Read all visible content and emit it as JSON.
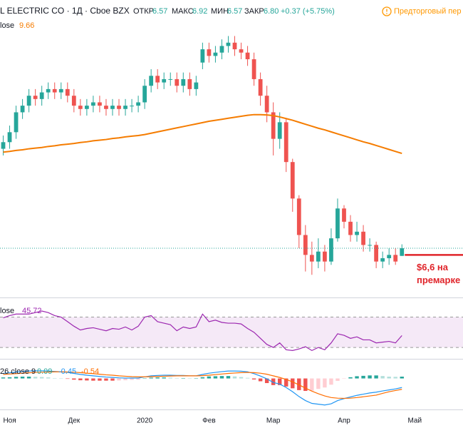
{
  "chart_data": [
    {
      "type": "candlestick",
      "title": "L ELECTRIC CO · 1Д · Cboe BZX",
      "status": "Предторговый пер",
      "ohlc_labels": [
        {
          "name": "ОТКР",
          "value": 6.57
        },
        {
          "name": "МАКС",
          "value": 6.92
        },
        {
          "name": "МИН",
          "value": 6.57
        },
        {
          "name": "ЗАКР",
          "value": 6.8,
          "label": "6.80"
        }
      ],
      "change": "+0.37 (+5.75%)",
      "categories": [
        null,
        "Ноя",
        null,
        null,
        null,
        null,
        null,
        null,
        null,
        null,
        null,
        "Дек",
        null,
        null,
        null,
        null,
        null,
        null,
        null,
        null,
        null,
        null,
        "2020",
        null,
        null,
        null,
        null,
        null,
        null,
        null,
        null,
        null,
        "Фев",
        null,
        null,
        null,
        null,
        null,
        null,
        null,
        null,
        null,
        "Мар",
        null,
        null,
        null,
        null,
        null,
        null,
        null,
        null,
        null,
        null,
        "Апр",
        null,
        null,
        null,
        null,
        null,
        null,
        null,
        null,
        null,
        null,
        "Май",
        null,
        null,
        null,
        null,
        null,
        null,
        null
      ],
      "open": [
        9.8,
        10.0,
        10.3,
        10.9,
        11.1,
        11.4,
        11.3,
        11.5,
        11.6,
        11.5,
        11.6,
        11.4,
        11.1,
        11.0,
        11.1,
        11.2,
        11.1,
        11.0,
        11.1,
        11.0,
        11.1,
        11.1,
        11.2,
        11.7,
        12.0,
        11.8,
        11.9,
        11.9,
        11.7,
        11.9,
        11.6,
        12.4,
        12.8,
        12.6,
        12.7,
        12.9,
        13.0,
        12.8,
        12.7,
        12.5,
        11.9,
        11.4,
        10.9,
        10.1,
        10.6,
        9.4,
        8.3,
        7.2,
        6.6,
        6.4,
        6.7,
        6.4,
        7.1,
        8.0,
        7.6,
        7.2,
        7.3,
        6.9,
        6.9,
        6.4,
        6.5,
        6.6,
        6.57,
        null,
        null,
        null,
        null,
        null,
        null,
        null,
        null,
        null
      ],
      "high": [
        10.2,
        10.5,
        11.1,
        11.3,
        11.6,
        11.6,
        11.7,
        11.8,
        11.8,
        11.8,
        11.8,
        11.6,
        11.3,
        11.3,
        11.4,
        11.4,
        11.3,
        11.3,
        11.3,
        11.3,
        11.3,
        11.4,
        11.9,
        12.2,
        12.2,
        12.1,
        12.1,
        12.1,
        12.1,
        12.1,
        12.0,
        13.0,
        13.0,
        12.9,
        13.1,
        13.2,
        13.2,
        13.0,
        12.9,
        12.7,
        12.1,
        11.7,
        11.2,
        10.9,
        10.7,
        9.5,
        8.4,
        7.5,
        7.0,
        7.1,
        6.9,
        7.4,
        8.3,
        8.1,
        7.8,
        7.6,
        7.5,
        7.1,
        7.0,
        6.7,
        6.8,
        6.8,
        6.92,
        null,
        null,
        null,
        null,
        null,
        null,
        null,
        null,
        null
      ],
      "low": [
        9.6,
        9.8,
        10.1,
        10.7,
        10.9,
        11.1,
        11.1,
        11.3,
        11.3,
        11.3,
        11.2,
        10.9,
        10.8,
        10.8,
        10.9,
        10.9,
        10.8,
        10.8,
        10.8,
        10.8,
        10.9,
        10.9,
        11.0,
        11.5,
        11.6,
        11.6,
        11.7,
        11.5,
        11.5,
        11.4,
        11.4,
        12.2,
        12.4,
        12.4,
        12.5,
        12.7,
        12.6,
        12.5,
        12.3,
        11.7,
        11.1,
        10.6,
        9.6,
        9.8,
        9.1,
        7.9,
        6.8,
        6.1,
        6.0,
        6.2,
        6.1,
        6.3,
        7.0,
        7.4,
        7.0,
        7.0,
        6.7,
        6.7,
        6.2,
        6.2,
        6.3,
        6.3,
        6.57,
        null,
        null,
        null,
        null,
        null,
        null,
        null,
        null,
        null
      ],
      "close": [
        10.0,
        10.3,
        10.9,
        11.1,
        11.4,
        11.3,
        11.5,
        11.6,
        11.5,
        11.6,
        11.4,
        11.1,
        11.0,
        11.1,
        11.2,
        11.1,
        11.0,
        11.1,
        11.0,
        11.1,
        11.1,
        11.2,
        11.7,
        12.0,
        11.8,
        11.9,
        11.9,
        11.7,
        11.9,
        11.6,
        11.8,
        12.8,
        12.6,
        12.7,
        12.9,
        13.0,
        12.8,
        12.7,
        12.5,
        11.9,
        11.4,
        10.9,
        10.1,
        10.6,
        9.4,
        8.3,
        7.2,
        6.6,
        6.4,
        6.7,
        6.4,
        7.1,
        8.0,
        7.6,
        7.2,
        7.3,
        6.9,
        6.9,
        6.4,
        6.5,
        6.6,
        6.4,
        6.8,
        null,
        null,
        null,
        null,
        null,
        null,
        null,
        null,
        null
      ],
      "up_color": "#26a69a",
      "down_color": "#ef5350",
      "ylim": [
        5.36,
        13.77
      ],
      "series": [
        {
          "name": "lose",
          "color": "#f57c00",
          "values": [
            9.7,
            9.72,
            9.75,
            9.77,
            9.8,
            9.82,
            9.84,
            9.87,
            9.89,
            9.92,
            9.94,
            9.96,
            9.99,
            10.01,
            10.04,
            10.06,
            10.08,
            10.11,
            10.13,
            10.16,
            10.18,
            10.2,
            10.23,
            10.27,
            10.31,
            10.35,
            10.39,
            10.43,
            10.47,
            10.51,
            10.55,
            10.59,
            10.63,
            10.66,
            10.69,
            10.72,
            10.75,
            10.78,
            10.81,
            10.83,
            10.83,
            10.82,
            10.8,
            10.76,
            10.71,
            10.66,
            10.6,
            10.54,
            10.48,
            10.42,
            10.37,
            10.31,
            10.25,
            10.19,
            10.13,
            10.07,
            10.01,
            9.96,
            9.9,
            9.84,
            9.78,
            9.72,
            9.66,
            null,
            null,
            null,
            null,
            null,
            null,
            null,
            null,
            null
          ]
        }
      ],
      "annotation": {
        "value": 6.6,
        "lines": [
          "$6,6 на",
          "премарке"
        ],
        "color": "#e0242a"
      }
    },
    {
      "type": "line",
      "ylim": [
        16,
        94
      ],
      "band": [
        30,
        70
      ],
      "band_color": "#9c27b0",
      "series": [
        {
          "name": "lose",
          "color": "#9c27b0",
          "values": [
            69,
            72,
            74,
            74,
            74,
            76,
            78,
            76,
            72,
            70,
            64,
            58,
            53,
            55,
            56,
            54,
            52,
            55,
            54,
            57,
            53,
            58,
            70,
            72,
            64,
            62,
            60,
            52,
            57,
            55,
            57,
            74,
            64,
            66,
            63,
            62,
            62,
            61,
            55,
            50,
            42,
            34,
            30,
            36,
            27,
            26,
            28,
            31,
            26,
            30,
            27,
            36,
            48,
            46,
            42,
            44,
            40,
            40,
            36,
            37,
            38,
            36,
            45.72,
            null,
            null,
            null,
            null,
            null,
            null,
            null,
            null,
            null
          ]
        }
      ]
    },
    {
      "type": "macd",
      "label": "26 close 9",
      "ylim": [
        -1.47,
        0.87
      ],
      "hist_colors": [
        "#26a69a",
        "#b2dfdb",
        "#ffcdd2",
        "#ef5350"
      ],
      "series": [
        {
          "color": "#26a69a",
          "values": [
            0.05,
            0.06,
            0.08,
            0.09,
            0.09,
            0.08,
            0.07,
            0.05,
            0.02,
            0,
            -0.02,
            -0.06,
            -0.09,
            -0.1,
            -0.11,
            -0.11,
            -0.11,
            -0.11,
            -0.1,
            -0.09,
            -0.07,
            -0.06,
            0,
            0.04,
            0.05,
            0.05,
            0.04,
            0.02,
            0.02,
            0,
            0,
            0.06,
            0.1,
            0.11,
            0.12,
            0.12,
            0.1,
            0.07,
            0.03,
            -0.05,
            -0.14,
            -0.23,
            -0.33,
            -0.33,
            -0.4,
            -0.49,
            -0.58,
            -0.62,
            -0.61,
            -0.52,
            -0.45,
            -0.31,
            -0.12,
            -0.01,
            0.06,
            0.11,
            0.13,
            0.15,
            0.15,
            0.12,
            0.09,
            0.08,
            0.09,
            null,
            null,
            null,
            null,
            null,
            null,
            null,
            null,
            null
          ]
        },
        {
          "color": "#2196f3",
          "values": [
            0.25,
            0.28,
            0.32,
            0.35,
            0.37,
            0.38,
            0.38,
            0.37,
            0.35,
            0.33,
            0.3,
            0.25,
            0.2,
            0.16,
            0.13,
            0.1,
            0.07,
            0.05,
            0.03,
            0.02,
            0.02,
            0.02,
            0.08,
            0.13,
            0.15,
            0.16,
            0.16,
            0.15,
            0.15,
            0.13,
            0.13,
            0.2,
            0.26,
            0.3,
            0.34,
            0.37,
            0.37,
            0.36,
            0.33,
            0.24,
            0.12,
            -0.02,
            -0.2,
            -0.28,
            -0.45,
            -0.66,
            -0.9,
            -1.1,
            -1.24,
            -1.28,
            -1.32,
            -1.26,
            -1.1,
            -1.0,
            -0.92,
            -0.84,
            -0.78,
            -0.72,
            -0.68,
            -0.62,
            -0.57,
            -0.52,
            -0.45,
            null,
            null,
            null,
            null,
            null,
            null,
            null,
            null,
            null
          ]
        },
        {
          "color": "#ff6d00",
          "values": [
            0.2,
            0.22,
            0.24,
            0.26,
            0.28,
            0.3,
            0.31,
            0.32,
            0.33,
            0.33,
            0.32,
            0.31,
            0.29,
            0.26,
            0.24,
            0.21,
            0.18,
            0.16,
            0.13,
            0.11,
            0.09,
            0.08,
            0.08,
            0.09,
            0.1,
            0.11,
            0.12,
            0.13,
            0.13,
            0.13,
            0.13,
            0.14,
            0.16,
            0.19,
            0.22,
            0.25,
            0.27,
            0.29,
            0.3,
            0.29,
            0.26,
            0.21,
            0.13,
            0.05,
            -0.05,
            -0.17,
            -0.32,
            -0.48,
            -0.63,
            -0.76,
            -0.87,
            -0.95,
            -0.98,
            -0.99,
            -0.98,
            -0.95,
            -0.91,
            -0.87,
            -0.83,
            -0.74,
            -0.66,
            -0.6,
            -0.54,
            null,
            null,
            null,
            null,
            null,
            null,
            null,
            null,
            null
          ]
        }
      ]
    }
  ]
}
